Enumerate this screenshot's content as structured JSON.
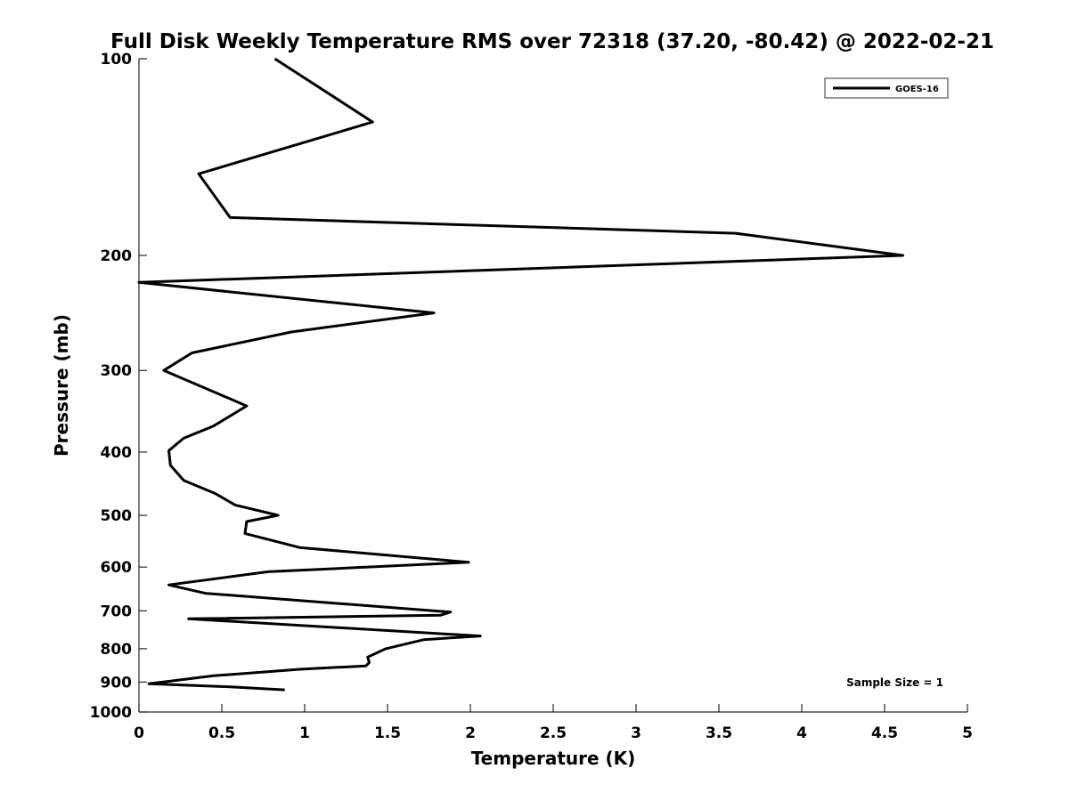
{
  "chart_data": {
    "type": "line",
    "title": "Full Disk Weekly Temperature RMS over 72318 (37.20, -80.42) @ 2022-02-21",
    "xlabel": "Temperature (K)",
    "ylabel": "Pressure (mb)",
    "xlim": [
      0,
      5
    ],
    "ylim": [
      100,
      1000
    ],
    "y_scale": "log",
    "y_reversed": true,
    "grid": false,
    "legend_position": "top-right",
    "x_ticks": [
      "0",
      "0.5",
      "1",
      "1.5",
      "2",
      "2.5",
      "3",
      "3.5",
      "4",
      "4.5",
      "5"
    ],
    "y_ticks": [
      "100",
      "200",
      "300",
      "400",
      "500",
      "600",
      "700",
      "800",
      "900",
      "1000"
    ],
    "annotation": "Sample Size = 1",
    "series": [
      {
        "name": "GOES-16",
        "color": "#000000",
        "points": [
          [
            0.82,
            100
          ],
          [
            1.41,
            125
          ],
          [
            0.36,
            150
          ],
          [
            0.55,
            175
          ],
          [
            3.6,
            185
          ],
          [
            4.61,
            200
          ],
          [
            0.0,
            220
          ],
          [
            1.78,
            245
          ],
          [
            0.92,
            262
          ],
          [
            0.32,
            282
          ],
          [
            0.15,
            300
          ],
          [
            0.65,
            340
          ],
          [
            0.45,
            365
          ],
          [
            0.27,
            381
          ],
          [
            0.18,
            398
          ],
          [
            0.19,
            419
          ],
          [
            0.27,
            442
          ],
          [
            0.46,
            463
          ],
          [
            0.58,
            482
          ],
          [
            0.84,
            500
          ],
          [
            0.65,
            511
          ],
          [
            0.64,
            533
          ],
          [
            0.97,
            560
          ],
          [
            1.99,
            590
          ],
          [
            0.78,
            610
          ],
          [
            0.18,
            639
          ],
          [
            0.4,
            658
          ],
          [
            1.88,
            703
          ],
          [
            1.82,
            711
          ],
          [
            0.3,
            720
          ],
          [
            2.06,
            765
          ],
          [
            1.72,
            775
          ],
          [
            1.49,
            800
          ],
          [
            1.38,
            824
          ],
          [
            1.39,
            840
          ],
          [
            1.37,
            850
          ],
          [
            0.98,
            860
          ],
          [
            0.45,
            880
          ],
          [
            0.06,
            905
          ],
          [
            0.55,
            915
          ],
          [
            0.88,
            925
          ]
        ]
      }
    ]
  }
}
